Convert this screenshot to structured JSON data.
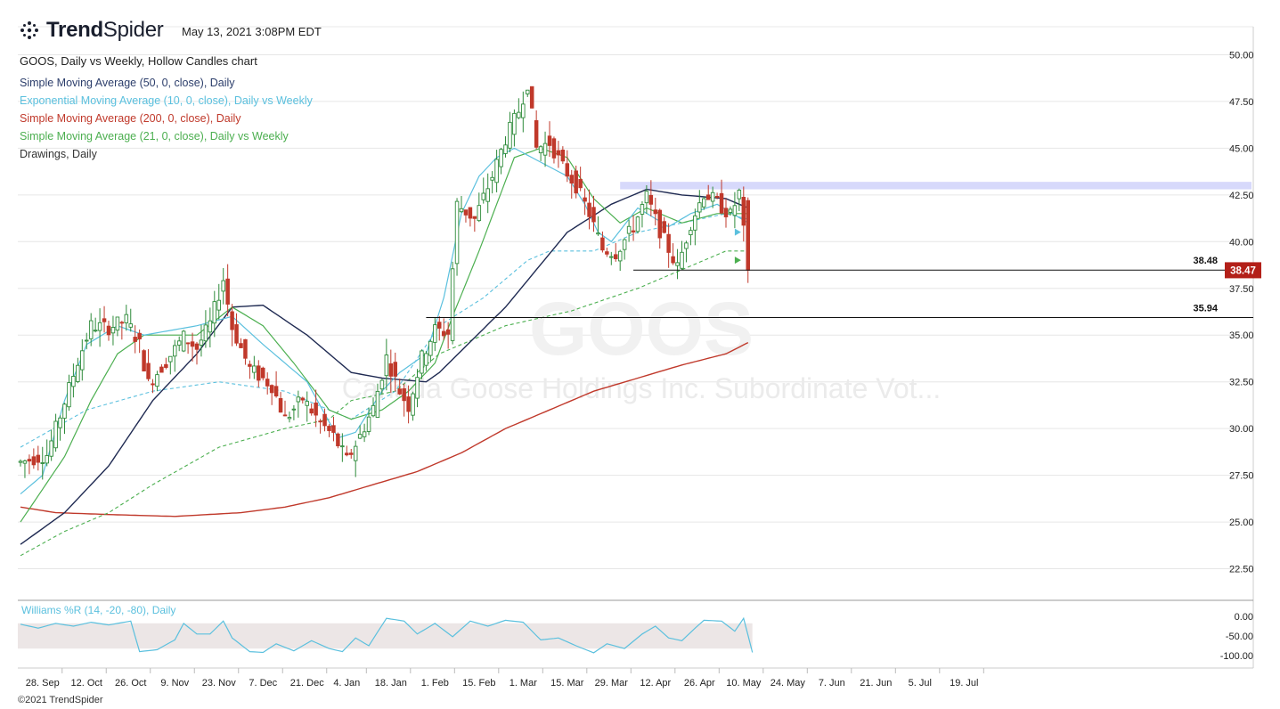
{
  "header": {
    "brand_bold": "Trend",
    "brand_light": "Spider",
    "timestamp": "May 13, 2021 3:08PM EDT",
    "chart_title": "GOOS, Daily vs Weekly, Hollow Candles chart",
    "watermark_symbol": "GOOS",
    "watermark_name": "Canada Goose Holdings Inc. Subordinate Vot..."
  },
  "legend": [
    {
      "label": "Simple Moving Average (50, 0, close), Daily",
      "color": "#2c3e6b"
    },
    {
      "label": "Exponential Moving Average (10, 0, close), Daily vs Weekly",
      "color": "#5bc0de"
    },
    {
      "label": "Simple Moving Average (200, 0, close), Daily",
      "color": "#c0392b"
    },
    {
      "label": "Simple Moving Average (21, 0, close), Daily vs Weekly",
      "color": "#4caf50"
    },
    {
      "label": "Drawings, Daily",
      "color": "#333333"
    }
  ],
  "footer": "©2021 TrendSpider",
  "colors": {
    "up": "#2e8b3a",
    "down": "#c0392b",
    "grid": "#e6e6e6",
    "zone": "#d7d9fb",
    "wr_band": "#ece6e6",
    "wr_line": "#5bc0de"
  },
  "chart_data": {
    "type": "candlestick",
    "symbol": "GOOS",
    "ylim": [
      21.0,
      51.5
    ],
    "y_ticks": [
      "50.00",
      "47.50",
      "45.00",
      "42.50",
      "40.00",
      "37.50",
      "35.00",
      "32.50",
      "30.00",
      "27.50",
      "25.00",
      "22.50"
    ],
    "x_ticks": [
      "28. Sep",
      "12. Oct",
      "26. Oct",
      "9. Nov",
      "23. Nov",
      "7. Dec",
      "21. Dec",
      "4. Jan",
      "18. Jan",
      "1. Feb",
      "15. Feb",
      "1. Mar",
      "15. Mar",
      "29. Mar",
      "12. Apr",
      "26. Apr",
      "10. May",
      "24. May",
      "7. Jun",
      "21. Jun",
      "5. Jul",
      "19. Jul"
    ],
    "x_tick_day_index": [
      5,
      15,
      25,
      35,
      45,
      55,
      65,
      74,
      84,
      94,
      104,
      114,
      124,
      134,
      144,
      154,
      164,
      174,
      184,
      194,
      204,
      214
    ],
    "last_price": "38.47",
    "last_price_value": 38.47,
    "levels": [
      {
        "label": "38.48",
        "value": 38.48,
        "from_day": 139
      },
      {
        "label": "35.94",
        "value": 35.94,
        "from_day": 92
      }
    ],
    "resistance_zone": [
      42.8,
      43.2
    ],
    "resistance_zone_from_day": 136,
    "sma50_knots": [
      [
        0,
        23.8
      ],
      [
        10,
        25.5
      ],
      [
        20,
        28
      ],
      [
        30,
        31.5
      ],
      [
        40,
        34
      ],
      [
        48,
        36.5
      ],
      [
        55,
        36.6
      ],
      [
        65,
        35
      ],
      [
        75,
        33
      ],
      [
        82,
        32.7
      ],
      [
        92,
        32.5
      ],
      [
        95,
        33
      ],
      [
        110,
        36.5
      ],
      [
        124,
        40.5
      ],
      [
        134,
        42
      ],
      [
        142,
        42.8
      ],
      [
        150,
        42.5
      ],
      [
        160,
        42.3
      ],
      [
        165,
        41.8
      ]
    ],
    "ema10_knots": [
      [
        0,
        26.5
      ],
      [
        5,
        27.5
      ],
      [
        10,
        31.5
      ],
      [
        15,
        34.5
      ],
      [
        22,
        35.5
      ],
      [
        28,
        35
      ],
      [
        40,
        35.5
      ],
      [
        48,
        36
      ],
      [
        55,
        34.5
      ],
      [
        65,
        32.5
      ],
      [
        72,
        29.5
      ],
      [
        76,
        29.8
      ],
      [
        82,
        32
      ],
      [
        86,
        33
      ],
      [
        92,
        34
      ],
      [
        96,
        37
      ],
      [
        100,
        41.5
      ],
      [
        104,
        43.5
      ],
      [
        108,
        44.5
      ],
      [
        112,
        45
      ],
      [
        116,
        44.5
      ],
      [
        120,
        44
      ],
      [
        124,
        43.5
      ],
      [
        128,
        42
      ],
      [
        131,
        40.5
      ],
      [
        134,
        40
      ],
      [
        140,
        41.8
      ],
      [
        147,
        40.8
      ],
      [
        152,
        41.5
      ],
      [
        158,
        42
      ],
      [
        165,
        41
      ]
    ],
    "sma21_knots": [
      [
        0,
        25
      ],
      [
        10,
        28.5
      ],
      [
        16,
        31.5
      ],
      [
        22,
        34
      ],
      [
        28,
        35
      ],
      [
        35,
        35
      ],
      [
        40,
        35
      ],
      [
        48,
        36.5
      ],
      [
        55,
        35.5
      ],
      [
        62,
        33.5
      ],
      [
        70,
        31
      ],
      [
        75,
        30.5
      ],
      [
        82,
        31
      ],
      [
        88,
        32
      ],
      [
        94,
        33.5
      ],
      [
        98,
        36
      ],
      [
        104,
        39.5
      ],
      [
        108,
        42
      ],
      [
        112,
        44.5
      ],
      [
        118,
        45
      ],
      [
        124,
        44.5
      ],
      [
        130,
        42.3
      ],
      [
        136,
        41
      ],
      [
        142,
        41.8
      ],
      [
        150,
        41
      ],
      [
        158,
        41.5
      ],
      [
        165,
        41.5
      ]
    ],
    "sma200_knots": [
      [
        0,
        25.8
      ],
      [
        8,
        25.5
      ],
      [
        20,
        25.4
      ],
      [
        35,
        25.3
      ],
      [
        50,
        25.5
      ],
      [
        60,
        25.8
      ],
      [
        70,
        26.3
      ],
      [
        80,
        27
      ],
      [
        90,
        27.7
      ],
      [
        100,
        28.7
      ],
      [
        110,
        30
      ],
      [
        120,
        31
      ],
      [
        130,
        32
      ],
      [
        140,
        32.7
      ],
      [
        150,
        33.4
      ],
      [
        160,
        34
      ],
      [
        165,
        34.6
      ]
    ],
    "weekly_sma_knots": [
      [
        0,
        23.2
      ],
      [
        10,
        24.5
      ],
      [
        20,
        25.5
      ],
      [
        30,
        27
      ],
      [
        45,
        29
      ],
      [
        60,
        30
      ],
      [
        70,
        30.5
      ],
      [
        75,
        31.5
      ],
      [
        85,
        32
      ],
      [
        95,
        34
      ],
      [
        110,
        35.5
      ],
      [
        125,
        36.3
      ],
      [
        140,
        37.5
      ],
      [
        150,
        38.5
      ],
      [
        160,
        39.5
      ],
      [
        165,
        39.5
      ]
    ],
    "weekly_ema_knots": [
      [
        0,
        29
      ],
      [
        15,
        31
      ],
      [
        30,
        32
      ],
      [
        45,
        32.5
      ],
      [
        60,
        32
      ],
      [
        75,
        30.5
      ],
      [
        85,
        32
      ],
      [
        95,
        35.5
      ],
      [
        105,
        37
      ],
      [
        115,
        39
      ],
      [
        120,
        39.5
      ],
      [
        130,
        39.5
      ],
      [
        140,
        40.5
      ],
      [
        150,
        41
      ],
      [
        160,
        41.5
      ],
      [
        165,
        41.2
      ]
    ],
    "price_knots": [
      [
        0,
        28.2
      ],
      [
        6,
        28.6
      ],
      [
        9,
        30.7
      ],
      [
        13,
        33.6
      ],
      [
        16,
        35.5
      ],
      [
        20,
        35.4
      ],
      [
        24,
        35.8
      ],
      [
        27,
        34.5
      ],
      [
        29,
        32.4
      ],
      [
        33,
        33.6
      ],
      [
        37,
        34.9
      ],
      [
        40,
        34.3
      ],
      [
        43,
        35.6
      ],
      [
        46,
        38
      ],
      [
        48,
        35.4
      ],
      [
        52,
        33.2
      ],
      [
        57,
        32.3
      ],
      [
        60,
        30.5
      ],
      [
        64,
        31.6
      ],
      [
        68,
        30.3
      ],
      [
        71,
        29.6
      ],
      [
        74,
        28.3
      ],
      [
        77,
        29.6
      ],
      [
        80,
        31.1
      ],
      [
        83,
        33.8
      ],
      [
        86,
        32
      ],
      [
        88,
        31.2
      ],
      [
        91,
        33.8
      ],
      [
        94,
        35.3
      ],
      [
        97,
        35.1
      ],
      [
        99,
        42
      ],
      [
        103,
        41.2
      ],
      [
        107,
        43.5
      ],
      [
        110,
        45.5
      ],
      [
        113,
        47
      ],
      [
        115,
        48.5
      ],
      [
        117,
        45
      ],
      [
        120,
        45.3
      ],
      [
        123,
        44
      ],
      [
        126,
        43
      ],
      [
        129,
        41.5
      ],
      [
        132,
        39.6
      ],
      [
        135,
        39.4
      ],
      [
        139,
        40.8
      ],
      [
        142,
        42.4
      ],
      [
        145,
        40.6
      ],
      [
        149,
        38.6
      ],
      [
        152,
        41
      ],
      [
        155,
        42.6
      ],
      [
        158,
        42.1
      ],
      [
        161,
        41.4
      ],
      [
        163,
        42.6
      ],
      [
        165,
        38.47
      ]
    ],
    "williams_r": {
      "label": "Williams %R (14, -20, -80), Daily",
      "levels": [
        -20,
        -80
      ],
      "y_ticks": [
        "0.00",
        "-50.00",
        "-100.00"
      ],
      "knots": [
        [
          0,
          -20
        ],
        [
          4,
          -30
        ],
        [
          8,
          -18
        ],
        [
          12,
          -25
        ],
        [
          16,
          -15
        ],
        [
          20,
          -22
        ],
        [
          25,
          -12
        ],
        [
          27,
          -90
        ],
        [
          31,
          -85
        ],
        [
          35,
          -60
        ],
        [
          37,
          -18
        ],
        [
          40,
          -45
        ],
        [
          43,
          -45
        ],
        [
          46,
          -12
        ],
        [
          48,
          -55
        ],
        [
          52,
          -90
        ],
        [
          55,
          -92
        ],
        [
          58,
          -70
        ],
        [
          62,
          -88
        ],
        [
          66,
          -62
        ],
        [
          70,
          -82
        ],
        [
          73,
          -90
        ],
        [
          76,
          -55
        ],
        [
          79,
          -75
        ],
        [
          83,
          -5
        ],
        [
          87,
          -12
        ],
        [
          90,
          -45
        ],
        [
          94,
          -18
        ],
        [
          98,
          -52
        ],
        [
          102,
          -12
        ],
        [
          106,
          -25
        ],
        [
          110,
          -10
        ],
        [
          114,
          -15
        ],
        [
          118,
          -60
        ],
        [
          122,
          -55
        ],
        [
          126,
          -75
        ],
        [
          130,
          -93
        ],
        [
          133,
          -70
        ],
        [
          137,
          -82
        ],
        [
          141,
          -45
        ],
        [
          144,
          -25
        ],
        [
          147,
          -55
        ],
        [
          150,
          -62
        ],
        [
          153,
          -30
        ],
        [
          155,
          -10
        ],
        [
          159,
          -12
        ],
        [
          162,
          -38
        ],
        [
          164,
          -5
        ],
        [
          166,
          -92
        ]
      ]
    }
  }
}
